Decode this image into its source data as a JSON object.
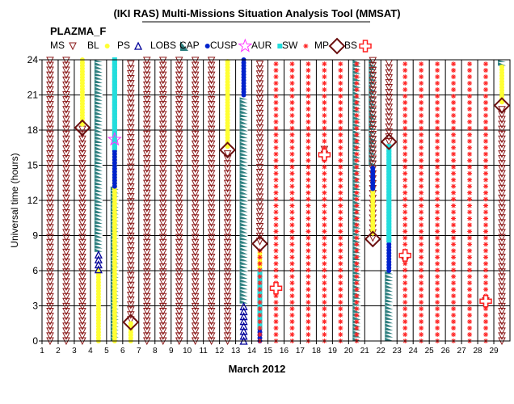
{
  "chart_data": {
    "type": "scatter",
    "title": "(IKI RAS) Multi-Missions Situation Analysis Tool (MMSAT)",
    "subtitle": "PLAZMA_F",
    "xlabel": "March 2012",
    "ylabel": "Universal time (hours)",
    "xlim": [
      1,
      30
    ],
    "ylim": [
      0,
      24
    ],
    "x_ticks": [
      1,
      2,
      3,
      4,
      5,
      6,
      7,
      8,
      9,
      10,
      11,
      12,
      13,
      14,
      15,
      16,
      17,
      18,
      19,
      20,
      21,
      22,
      23,
      24,
      25,
      26,
      27,
      28,
      29
    ],
    "y_ticks": [
      0,
      3,
      6,
      9,
      12,
      15,
      18,
      21,
      24
    ],
    "grid": true,
    "legend_position": "top",
    "legend": [
      {
        "key": "MS",
        "label": "MS",
        "marker": "triangle-down-open",
        "color": "#8b1a1a"
      },
      {
        "key": "BL",
        "label": "BL",
        "marker": "circle",
        "color": "#ffff33"
      },
      {
        "key": "PS",
        "label": "PS",
        "marker": "triangle-up-open",
        "color": "#000099"
      },
      {
        "key": "LOBS",
        "label": "LOBS",
        "marker": "wedge",
        "color": "#2f8080"
      },
      {
        "key": "CAP",
        "label": "CAP",
        "marker": "circle",
        "color": "#0022cc"
      },
      {
        "key": "CUSP",
        "label": "CUSP",
        "marker": "star-open",
        "color": "#ff33ff"
      },
      {
        "key": "AUR",
        "label": "AUR",
        "marker": "square",
        "color": "#22dddd"
      },
      {
        "key": "SW",
        "label": "SW",
        "marker": "asterisk",
        "color": "#ff2222"
      },
      {
        "key": "MP",
        "label": "MP",
        "marker": "diamond-open",
        "color": "#6b1010"
      },
      {
        "key": "BS",
        "label": "BS",
        "marker": "cross-open",
        "color": "#ff2222"
      }
    ],
    "series": [
      {
        "name": "MS",
        "segments": [
          {
            "x": 1.5,
            "from": 0,
            "to": 24
          },
          {
            "x": 2.5,
            "from": 0,
            "to": 24
          },
          {
            "x": 3.5,
            "from": 0,
            "to": 18.3
          },
          {
            "x": 6.5,
            "from": 1.8,
            "to": 24
          },
          {
            "x": 7.5,
            "from": 0,
            "to": 24
          },
          {
            "x": 8.5,
            "from": 0,
            "to": 24
          },
          {
            "x": 9.5,
            "from": 0,
            "to": 24
          },
          {
            "x": 10.5,
            "from": 0,
            "to": 24
          },
          {
            "x": 11.5,
            "from": 0,
            "to": 24
          },
          {
            "x": 12.5,
            "from": 0,
            "to": 16.3
          },
          {
            "x": 14.5,
            "from": 8.5,
            "to": 24
          },
          {
            "x": 18.5,
            "from": 15.5,
            "to": 16.5
          },
          {
            "x": 21.5,
            "from": 8.8,
            "to": 24
          },
          {
            "x": 22.5,
            "from": 17.0,
            "to": 24
          },
          {
            "x": 23.5,
            "from": 6.8,
            "to": 7.5
          },
          {
            "x": 28.5,
            "from": 3.0,
            "to": 3.8
          },
          {
            "x": 29.5,
            "from": 0,
            "to": 20.1
          }
        ]
      },
      {
        "name": "BL",
        "segments": [
          {
            "x": 3.5,
            "from": 18.5,
            "to": 24
          },
          {
            "x": 4.5,
            "from": 0,
            "to": 6.0
          },
          {
            "x": 5.5,
            "from": 0,
            "to": 24
          },
          {
            "x": 6.5,
            "from": 0,
            "to": 1.5
          },
          {
            "x": 12.5,
            "from": 16.6,
            "to": 24
          },
          {
            "x": 14.5,
            "from": 6.0,
            "to": 7.6
          },
          {
            "x": 21.5,
            "from": 9.2,
            "to": 13.0
          },
          {
            "x": 29.5,
            "from": 20.4,
            "to": 23.5
          }
        ]
      },
      {
        "name": "PS",
        "segments": [
          {
            "x": 4.5,
            "from": 6.1,
            "to": 7.6
          },
          {
            "x": 13.5,
            "from": 0,
            "to": 3.0
          }
        ]
      },
      {
        "name": "LOBS",
        "segments": [
          {
            "x": 4.5,
            "from": 7.6,
            "to": 24
          },
          {
            "x": 5.5,
            "from": 0,
            "to": 13.2
          },
          {
            "x": 13.5,
            "from": 3.2,
            "to": 20.8
          },
          {
            "x": 20.5,
            "from": 0,
            "to": 24
          },
          {
            "x": 21.5,
            "from": 15.0,
            "to": 24
          },
          {
            "x": 22.5,
            "from": 0,
            "to": 6.0
          },
          {
            "x": 29.5,
            "from": 23.5,
            "to": 24
          }
        ]
      },
      {
        "name": "CAP",
        "segments": [
          {
            "x": 5.5,
            "from": 13.2,
            "to": 16.5
          },
          {
            "x": 13.5,
            "from": 21.0,
            "to": 24
          },
          {
            "x": 14.5,
            "from": 0,
            "to": 1.2
          },
          {
            "x": 21.5,
            "from": 13.0,
            "to": 14.8
          },
          {
            "x": 22.5,
            "from": 6.0,
            "to": 8.6
          }
        ]
      },
      {
        "name": "CUSP",
        "points": [
          {
            "x": 5.5,
            "y": 17.2
          }
        ]
      },
      {
        "name": "AUR",
        "segments": [
          {
            "x": 5.5,
            "from": 16.5,
            "to": 24
          },
          {
            "x": 14.5,
            "from": 1.2,
            "to": 6.0
          },
          {
            "x": 22.5,
            "from": 8.6,
            "to": 16.8
          }
        ]
      },
      {
        "name": "SW",
        "segments": [
          {
            "x": 14.5,
            "from": 0,
            "to": 8.2
          },
          {
            "x": 15.5,
            "from": 0,
            "to": 24
          },
          {
            "x": 16.5,
            "from": 0,
            "to": 24
          },
          {
            "x": 17.5,
            "from": 0,
            "to": 24
          },
          {
            "x": 18.5,
            "from": 0,
            "to": 24
          },
          {
            "x": 19.5,
            "from": 0,
            "to": 24
          },
          {
            "x": 20.5,
            "from": 0,
            "to": 24
          },
          {
            "x": 23.5,
            "from": 0,
            "to": 24
          },
          {
            "x": 24.5,
            "from": 0,
            "to": 24
          },
          {
            "x": 25.5,
            "from": 0,
            "to": 24
          },
          {
            "x": 26.5,
            "from": 0,
            "to": 24
          },
          {
            "x": 27.5,
            "from": 0,
            "to": 24
          },
          {
            "x": 28.5,
            "from": 0,
            "to": 24
          }
        ]
      },
      {
        "name": "MP",
        "points": [
          {
            "x": 3.5,
            "y": 18.2
          },
          {
            "x": 6.5,
            "y": 1.6
          },
          {
            "x": 12.5,
            "y": 16.3
          },
          {
            "x": 14.5,
            "y": 8.3
          },
          {
            "x": 21.5,
            "y": 8.7
          },
          {
            "x": 22.5,
            "y": 17.0
          },
          {
            "x": 29.5,
            "y": 20.1
          }
        ]
      },
      {
        "name": "BS",
        "points": [
          {
            "x": 15.5,
            "y": 4.5
          },
          {
            "x": 18.5,
            "y": 15.9
          },
          {
            "x": 23.5,
            "y": 7.3
          },
          {
            "x": 28.5,
            "y": 3.4
          }
        ]
      }
    ]
  }
}
